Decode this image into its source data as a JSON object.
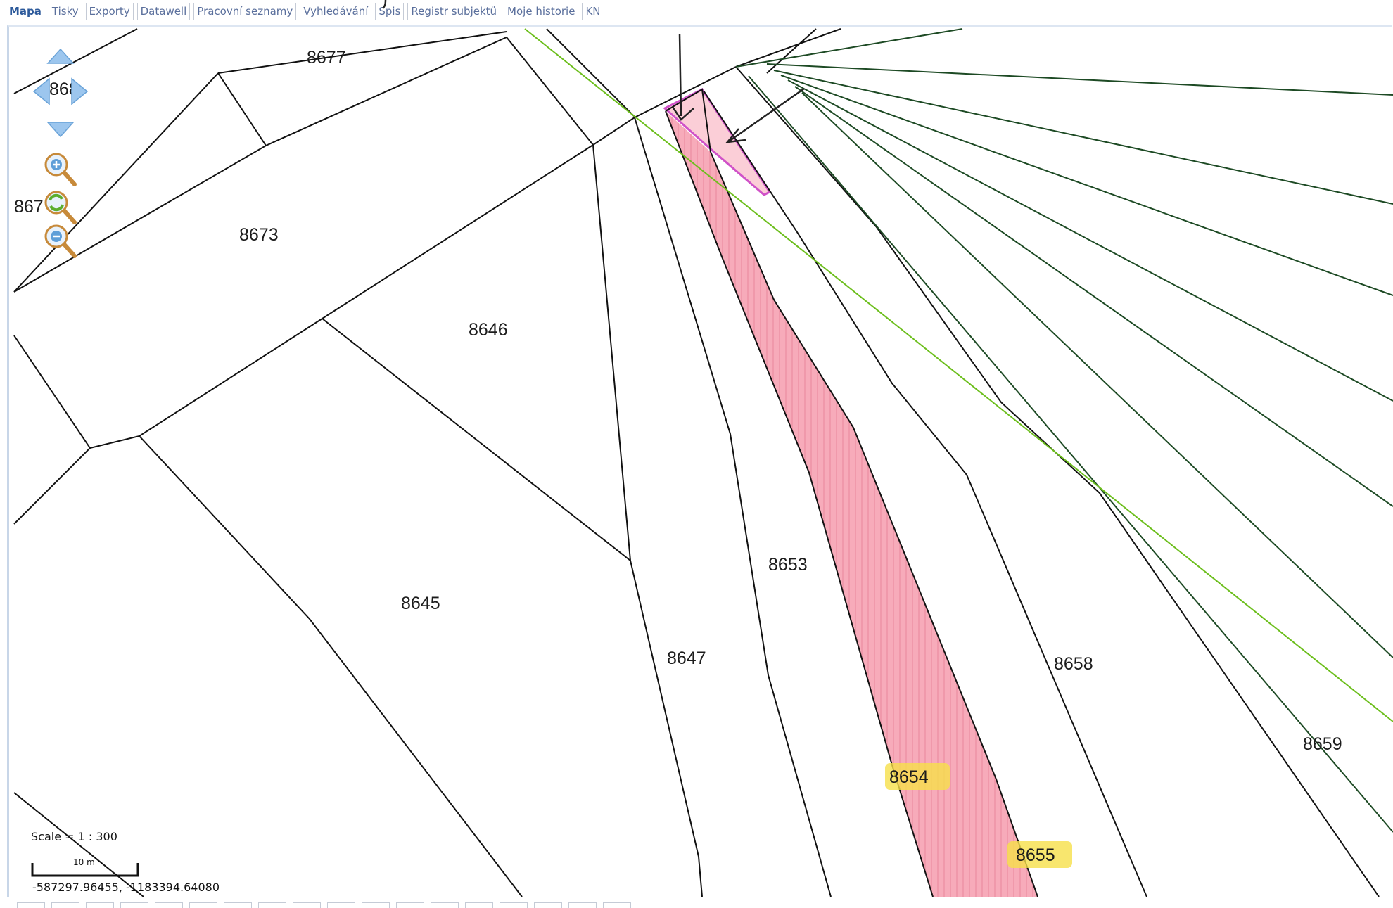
{
  "tabs": [
    {
      "label": "Mapa",
      "active": true
    },
    {
      "label": "Tisky"
    },
    {
      "label": "Exporty"
    },
    {
      "label": "Datawell"
    },
    {
      "label": "Pracovní seznamy"
    },
    {
      "label": "Vyhledávání"
    },
    {
      "label": "Spis"
    },
    {
      "label": "Registr subjektů"
    },
    {
      "label": "Moje historie"
    },
    {
      "label": "KN"
    }
  ],
  "map": {
    "parcels": {
      "p8677": "8677",
      "p868x": "868",
      "p867x": "867",
      "p8673": "8673",
      "p8646": "8646",
      "p8645": "8645",
      "p8647": "8647",
      "p8653": "8653",
      "p8654": "8654",
      "p8655": "8655",
      "p8658": "8658",
      "p8659": "8659"
    },
    "highlight_color": "#f7a6b6",
    "label_highlight_color": "#f6e04a",
    "green_line_color": "#6cbe1c",
    "boundary_color": "#111111"
  },
  "controls": {
    "pan_up": "arrow-up-icon",
    "pan_left": "arrow-left-icon",
    "pan_right": "arrow-right-icon",
    "pan_down": "arrow-down-icon",
    "zoom_in": "zoom-in-icon",
    "zoom_reset": "zoom-reset-icon",
    "zoom_out": "zoom-out-icon"
  },
  "scale": {
    "text": "Scale = 1 : 300",
    "unit": "10 m"
  },
  "coordinates": "-587297.96455, -1183394.64080"
}
